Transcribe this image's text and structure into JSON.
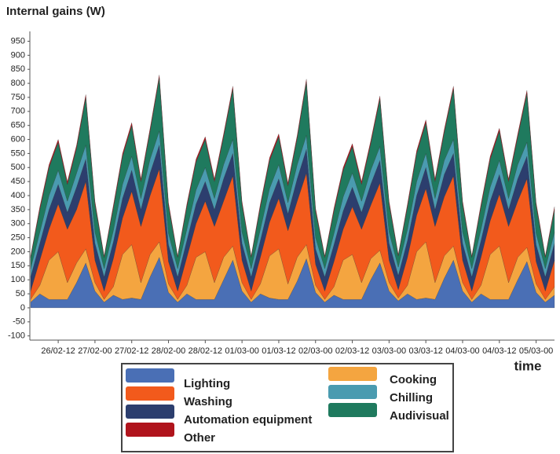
{
  "chart_data": {
    "type": "stacked_area",
    "title": "Internal gains (W)",
    "x_label": "time",
    "categories": [
      null,
      null,
      null,
      "26/02-12",
      null,
      null,
      null,
      "27/02-00",
      null,
      null,
      null,
      "27/02-12",
      null,
      null,
      null,
      "28/02-00",
      null,
      null,
      null,
      "28/02-12",
      null,
      null,
      null,
      "01/03-00",
      null,
      null,
      null,
      "01/03-12",
      null,
      null,
      null,
      "02/03-00",
      null,
      null,
      null,
      "02/03-12",
      null,
      null,
      null,
      "03/03-00",
      null,
      null,
      null,
      "03/03-12",
      null,
      null,
      null,
      "04/03-00",
      null,
      null,
      null,
      "04/03-12",
      null,
      null,
      null,
      "05/03-00",
      null,
      null
    ],
    "ylim": [
      -115,
      985
    ],
    "yticks": [
      -100,
      -50,
      0,
      50,
      100,
      150,
      200,
      250,
      300,
      350,
      400,
      450,
      500,
      550,
      600,
      650,
      700,
      750,
      800,
      850,
      900,
      950
    ],
    "grid": false,
    "legend": "bottom",
    "series": [
      {
        "name": "Lighting",
        "color": "#4a6fb5",
        "values": [
          20,
          50,
          30,
          30,
          30,
          90,
          160,
          60,
          20,
          45,
          30,
          35,
          30,
          110,
          180,
          55,
          20,
          50,
          30,
          30,
          30,
          100,
          170,
          60,
          20,
          50,
          35,
          30,
          30,
          95,
          175,
          55,
          20,
          45,
          30,
          30,
          30,
          100,
          160,
          60,
          25,
          50,
          30,
          35,
          30,
          105,
          170,
          60,
          20,
          50,
          30,
          30,
          30,
          100,
          165,
          55,
          20,
          45
        ]
      },
      {
        "name": "Cooking",
        "color": "#f4a540",
        "values": [
          10,
          30,
          140,
          170,
          60,
          70,
          50,
          30,
          10,
          30,
          160,
          190,
          60,
          80,
          55,
          30,
          10,
          30,
          150,
          170,
          60,
          80,
          50,
          30,
          10,
          35,
          150,
          180,
          55,
          85,
          50,
          25,
          10,
          30,
          140,
          160,
          60,
          75,
          45,
          30,
          10,
          30,
          170,
          200,
          60,
          80,
          50,
          30,
          10,
          30,
          160,
          190,
          60,
          80,
          50,
          30,
          10,
          30
        ]
      },
      {
        "name": "Washing",
        "color": "#f25a1c",
        "values": [
          30,
          90,
          110,
          170,
          190,
          190,
          240,
          80,
          30,
          100,
          130,
          190,
          200,
          210,
          260,
          80,
          30,
          100,
          120,
          180,
          200,
          200,
          250,
          80,
          30,
          95,
          120,
          180,
          190,
          200,
          255,
          75,
          30,
          90,
          110,
          170,
          190,
          190,
          240,
          80,
          30,
          100,
          130,
          190,
          200,
          210,
          250,
          80,
          30,
          100,
          120,
          185,
          200,
          200,
          245,
          80,
          30,
          95
        ]
      },
      {
        "name": "Automation equipment",
        "color": "#2c3e6e",
        "values": [
          50,
          60,
          70,
          70,
          60,
          80,
          80,
          60,
          50,
          60,
          70,
          75,
          60,
          80,
          85,
          60,
          50,
          60,
          70,
          70,
          60,
          80,
          80,
          60,
          50,
          60,
          70,
          70,
          60,
          80,
          85,
          55,
          50,
          60,
          65,
          70,
          60,
          75,
          80,
          60,
          50,
          60,
          70,
          75,
          60,
          80,
          80,
          60,
          50,
          60,
          70,
          70,
          60,
          80,
          80,
          60,
          50,
          60
        ]
      },
      {
        "name": "Chilling",
        "color": "#4a9bb0",
        "values": [
          30,
          40,
          50,
          50,
          40,
          50,
          50,
          40,
          30,
          40,
          50,
          50,
          40,
          50,
          50,
          40,
          30,
          40,
          50,
          50,
          40,
          50,
          50,
          40,
          30,
          40,
          50,
          50,
          40,
          50,
          50,
          40,
          30,
          40,
          50,
          50,
          40,
          50,
          50,
          40,
          30,
          40,
          50,
          50,
          40,
          50,
          50,
          40,
          30,
          40,
          50,
          50,
          40,
          50,
          50,
          40,
          30,
          40
        ]
      },
      {
        "name": "Audivisual",
        "color": "#1f7a5e",
        "values": [
          40,
          80,
          100,
          100,
          60,
          90,
          170,
          100,
          40,
          80,
          100,
          110,
          60,
          100,
          190,
          100,
          40,
          80,
          100,
          100,
          60,
          100,
          180,
          100,
          40,
          80,
          100,
          100,
          60,
          95,
          190,
          95,
          40,
          80,
          95,
          95,
          60,
          95,
          170,
          100,
          40,
          80,
          100,
          110,
          60,
          100,
          180,
          100,
          40,
          80,
          100,
          105,
          60,
          100,
          175,
          100,
          40,
          80
        ]
      },
      {
        "name": "Other",
        "color": "#b0141c",
        "values": [
          5,
          10,
          10,
          10,
          10,
          10,
          10,
          10,
          5,
          10,
          10,
          10,
          10,
          10,
          10,
          10,
          5,
          10,
          10,
          10,
          10,
          10,
          10,
          10,
          5,
          10,
          10,
          10,
          10,
          10,
          10,
          10,
          5,
          10,
          10,
          10,
          10,
          10,
          10,
          10,
          5,
          10,
          10,
          10,
          10,
          10,
          10,
          10,
          5,
          10,
          10,
          10,
          10,
          10,
          10,
          10,
          5,
          10
        ]
      }
    ]
  }
}
